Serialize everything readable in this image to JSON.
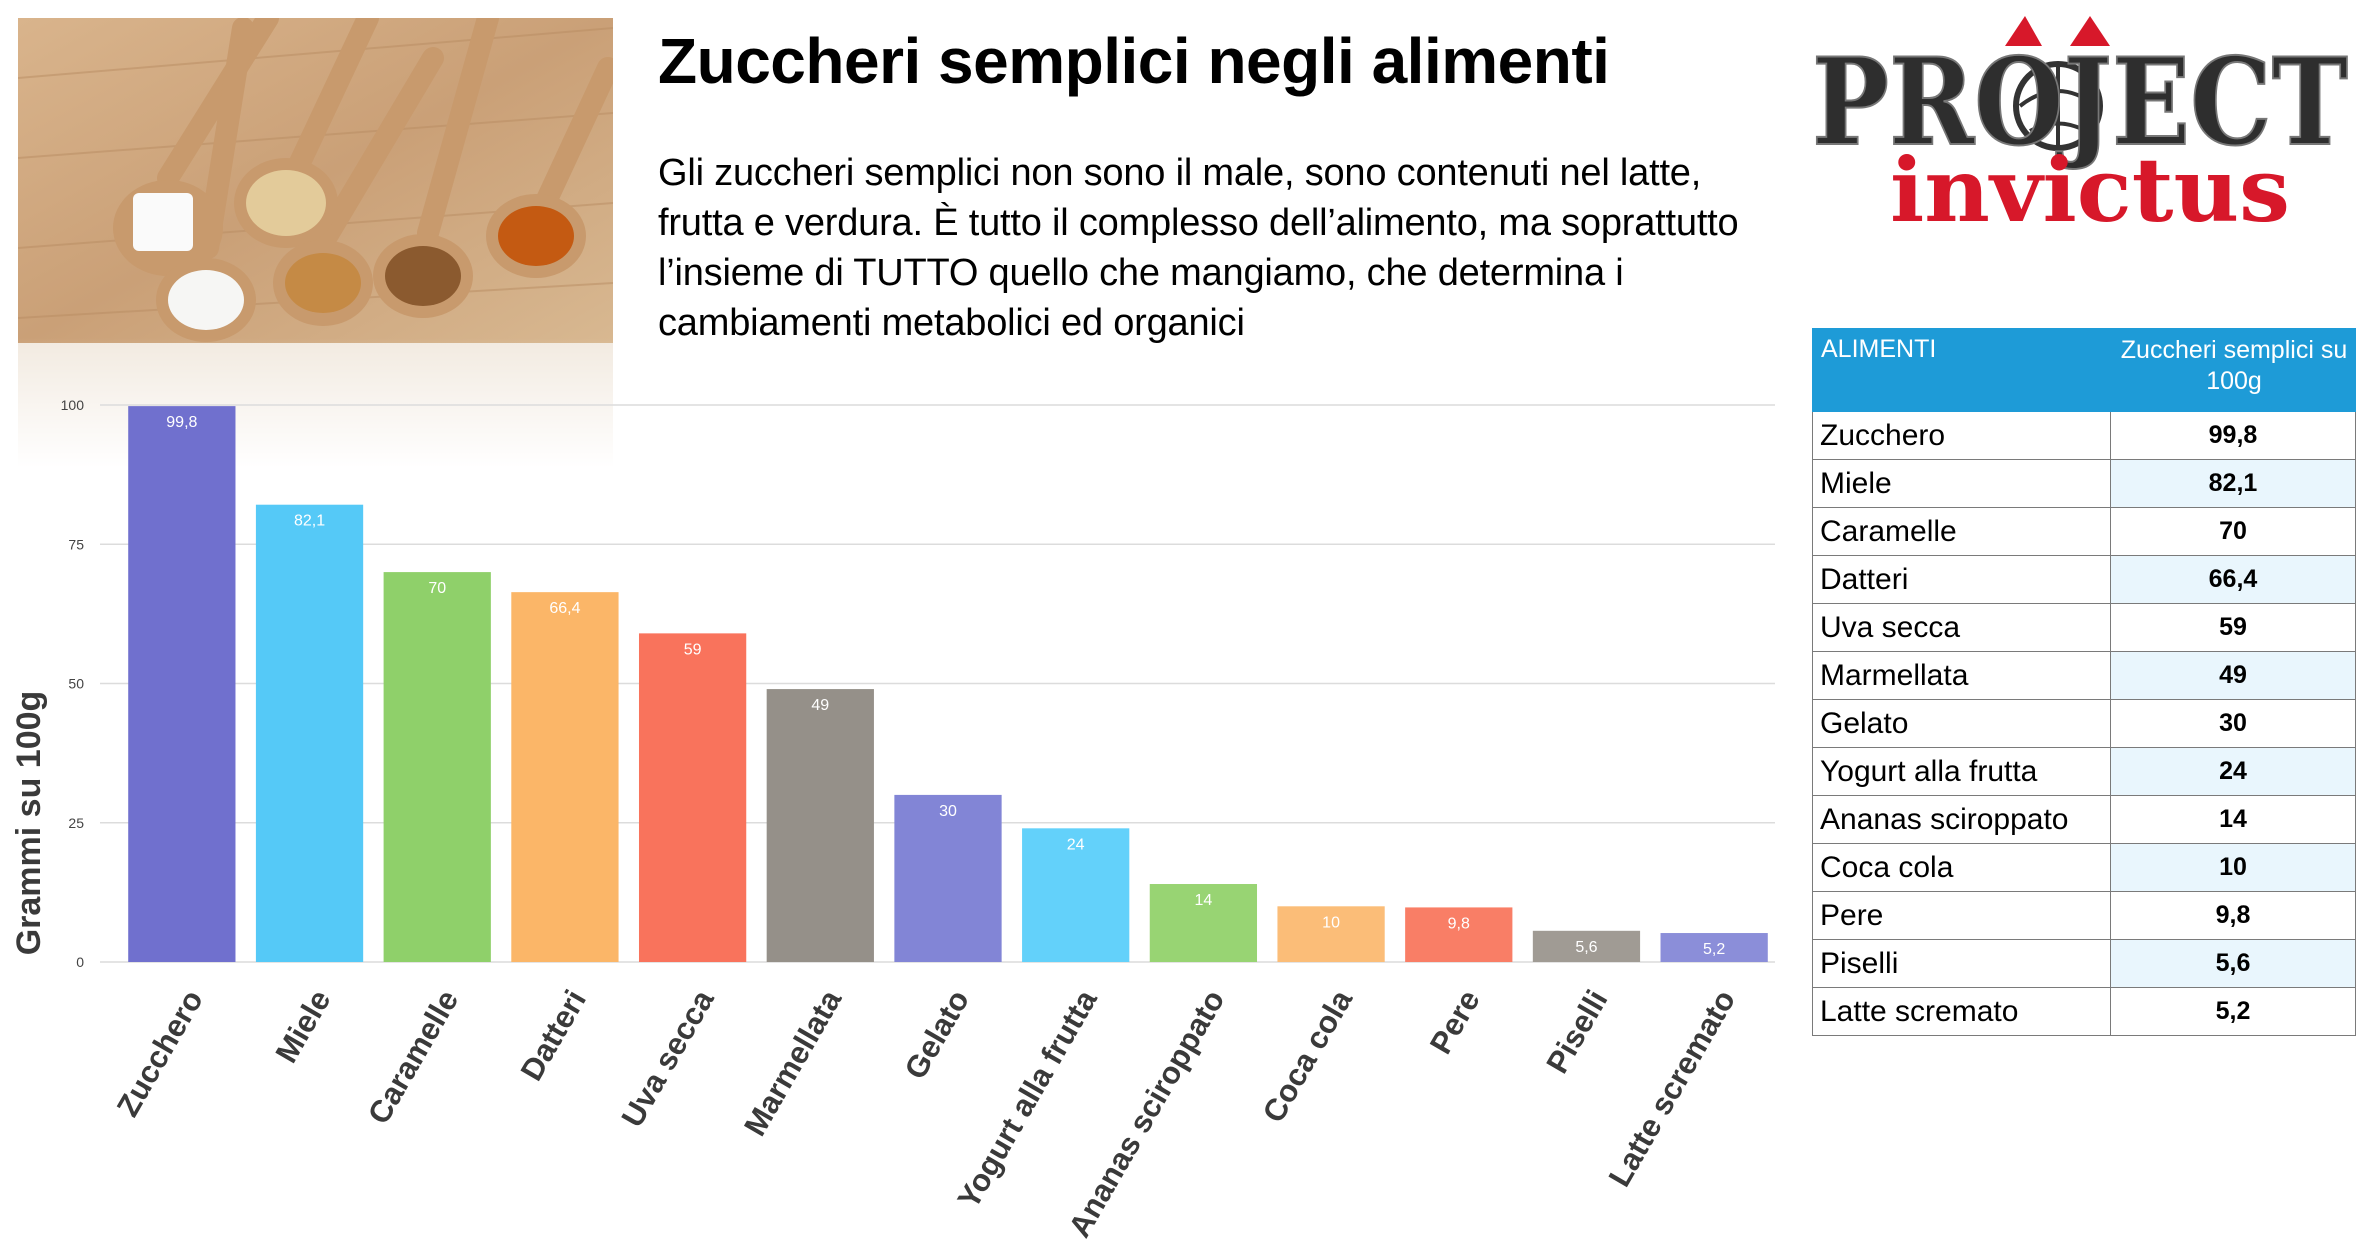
{
  "header": {
    "title": "Zuccheri semplici negli alimenti",
    "intro": "Gli zuccheri semplici non sono il male, sono contenuti nel latte, frutta e verdura. È tutto il complesso dell’alimento, ma soprattutto l’insieme di TUTTO quello che mangiamo, che determina i cambiamenti metabolici ed organici"
  },
  "logo": {
    "line1": "PROJECT",
    "line2": "invictus",
    "accent_color": "#d7182a"
  },
  "chart_data": {
    "type": "bar",
    "ylabel": "Grammi su 100g",
    "ylim": [
      0,
      100
    ],
    "yticks": [
      0,
      25,
      50,
      75,
      100
    ],
    "categories": [
      "Zucchero",
      "Miele",
      "Caramelle",
      "Datteri",
      "Uva secca",
      "Marmellata",
      "Gelato",
      "Yogurt alla frutta",
      "Ananas sciroppato",
      "Coca cola",
      "Pere",
      "Piselli",
      "Latte scremato"
    ],
    "values": [
      99.8,
      82.1,
      70,
      66.4,
      59,
      49,
      30,
      24,
      14,
      10,
      9.8,
      5.6,
      5.2
    ],
    "value_labels": [
      "99,8",
      "82,1",
      "70",
      "66,4",
      "59",
      "49",
      "30",
      "24",
      "14",
      "10",
      "9,8",
      "5,6",
      "5,2"
    ],
    "colors": [
      "#7070ce",
      "#55c9f7",
      "#8fd06a",
      "#fbb668",
      "#f9735c",
      "#959089",
      "#8285d6",
      "#63d1fa",
      "#98d473",
      "#fbbd78",
      "#f97e66",
      "#a09b94",
      "#8b8ed9"
    ],
    "grid": true
  },
  "table": {
    "header_col1": "ALIMENTI",
    "header_col2": "Zuccheri semplici su 100g",
    "header_color": "#1e9bd7",
    "rows": [
      {
        "food": "Zucchero",
        "value": "99,8"
      },
      {
        "food": "Miele",
        "value": "82,1"
      },
      {
        "food": "Caramelle",
        "value": "70"
      },
      {
        "food": "Datteri",
        "value": "66,4"
      },
      {
        "food": "Uva secca",
        "value": "59"
      },
      {
        "food": "Marmellata",
        "value": "49"
      },
      {
        "food": "Gelato",
        "value": "30"
      },
      {
        "food": "Yogurt alla frutta",
        "value": "24"
      },
      {
        "food": "Ananas sciroppato",
        "value": "14"
      },
      {
        "food": "Coca cola",
        "value": "10"
      },
      {
        "food": "Pere",
        "value": "9,8"
      },
      {
        "food": "Piselli",
        "value": "5,6"
      },
      {
        "food": "Latte scremato",
        "value": "5,2"
      }
    ]
  }
}
